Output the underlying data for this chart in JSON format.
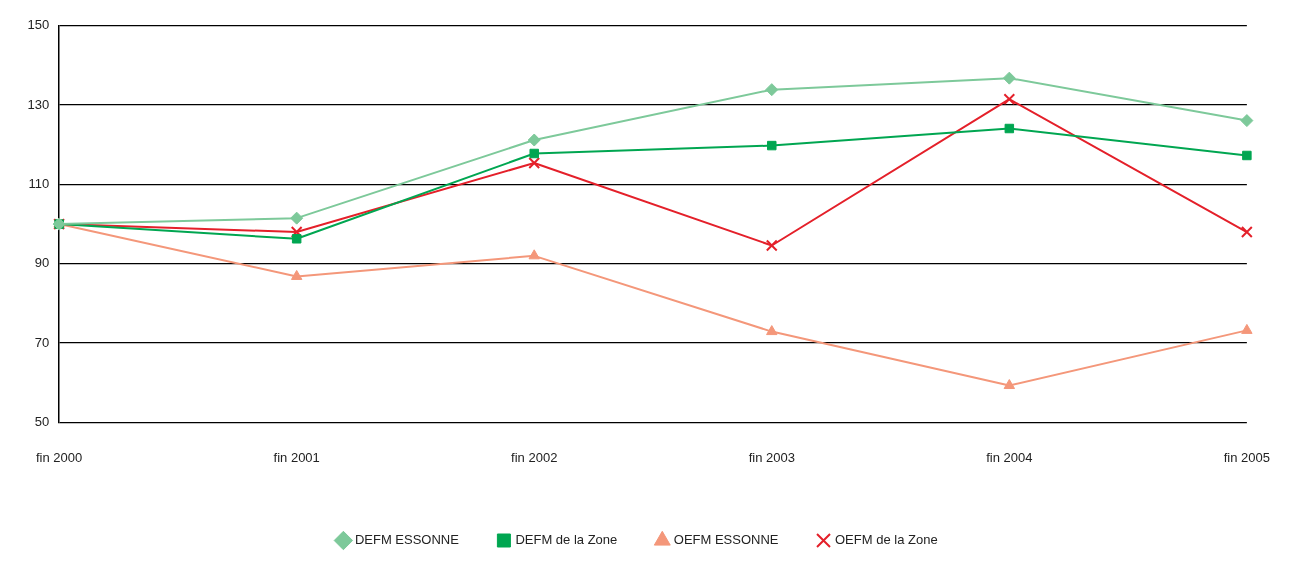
{
  "chart_data": {
    "type": "line",
    "categories": [
      "fin 2000",
      "fin 2001",
      "fin 2002",
      "fin 2003",
      "fin 2004",
      "fin 2005"
    ],
    "series": [
      {
        "name": "DEFM ESSONNE",
        "color": "#7dc99a",
        "marker": "diamond",
        "values": [
          100,
          101.5,
          121.2,
          133.9,
          136.8,
          126.1
        ]
      },
      {
        "name": "DEFM de la Zone",
        "color": "#00a651",
        "marker": "square",
        "values": [
          100,
          96.3,
          117.8,
          119.8,
          124.1,
          117.3
        ]
      },
      {
        "name": "OEFM ESSONNE",
        "color": "#f4977a",
        "marker": "triangle",
        "values": [
          100,
          86.8,
          92,
          72.9,
          59.3,
          73.2
        ]
      },
      {
        "name": "OEFM de la Zone",
        "color": "#e4202a",
        "marker": "cross",
        "values": [
          100,
          98,
          115.4,
          94.6,
          131.5,
          98
        ]
      }
    ],
    "ylim": [
      50,
      150
    ],
    "yticks": [
      50,
      70,
      90,
      110,
      130,
      150
    ],
    "grid": "y",
    "legend": "bottom",
    "line_style": "solid"
  }
}
